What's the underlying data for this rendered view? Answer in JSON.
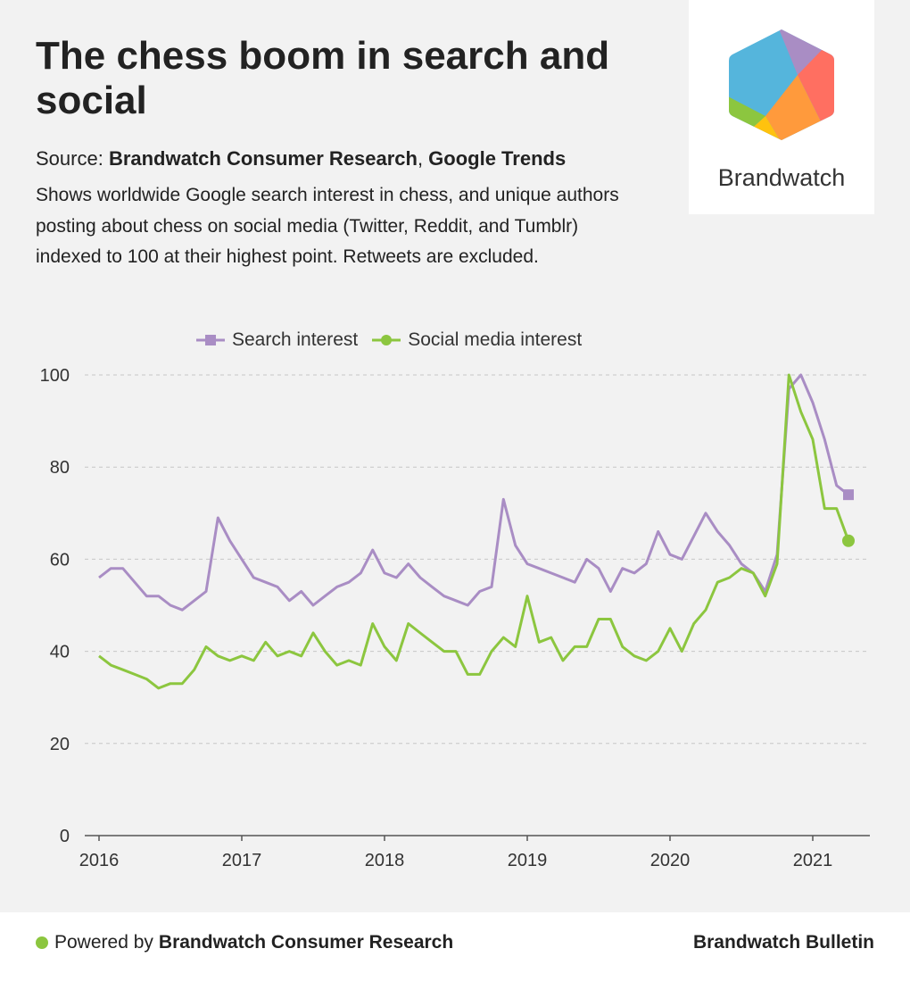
{
  "header": {
    "title": "The chess boom in search and social",
    "source_prefix": "Source: ",
    "source_1": "Brandwatch Consumer Research",
    "source_sep": ", ",
    "source_2": "Google Trends",
    "description": "Shows worldwide Google search interest in chess, and unique authors posting about chess on social media (Twitter, Reddit, and Tumblr) indexed to 100 at their highest point. Retweets are excluded."
  },
  "logo": {
    "word": "Brandwatch",
    "icon": "brandwatch-hexagon-icon"
  },
  "footer": {
    "powered_prefix": "Powered by",
    "powered_name": "Brandwatch Consumer Research",
    "brand": "Brandwatch Bulletin"
  },
  "colors": {
    "search": "#a98dc4",
    "social": "#8cc63f",
    "grid": "#c6c6c6",
    "axis": "#555555"
  },
  "chart_data": {
    "type": "line",
    "title": "The chess boom in search and social",
    "xlabel": "",
    "ylabel": "",
    "ylim": [
      0,
      100
    ],
    "yticks": [
      "0",
      "20",
      "40",
      "60",
      "80",
      "100"
    ],
    "xlim": [
      2016,
      2021.5
    ],
    "xticks": [
      "2016",
      "2017",
      "2018",
      "2019",
      "2020",
      "2021"
    ],
    "grid": true,
    "legend_position": "top",
    "x": [
      2016.0,
      2016.083,
      2016.167,
      2016.25,
      2016.333,
      2016.417,
      2016.5,
      2016.583,
      2016.667,
      2016.75,
      2016.833,
      2016.917,
      2017.0,
      2017.083,
      2017.167,
      2017.25,
      2017.333,
      2017.417,
      2017.5,
      2017.583,
      2017.667,
      2017.75,
      2017.833,
      2017.917,
      2018.0,
      2018.083,
      2018.167,
      2018.25,
      2018.333,
      2018.417,
      2018.5,
      2018.583,
      2018.667,
      2018.75,
      2018.833,
      2018.917,
      2019.0,
      2019.083,
      2019.167,
      2019.25,
      2019.333,
      2019.417,
      2019.5,
      2019.583,
      2019.667,
      2019.75,
      2019.833,
      2019.917,
      2020.0,
      2020.083,
      2020.167,
      2020.25,
      2020.333,
      2020.417,
      2020.5,
      2020.583,
      2020.667,
      2020.75,
      2020.833,
      2020.917,
      2021.0,
      2021.083,
      2021.167,
      2021.25
    ],
    "series": [
      {
        "name": "Search interest",
        "marker": "square",
        "values": [
          56,
          58,
          58,
          55,
          52,
          52,
          50,
          49,
          51,
          53,
          69,
          64,
          60,
          56,
          55,
          54,
          51,
          53,
          50,
          52,
          54,
          55,
          57,
          62,
          57,
          56,
          59,
          56,
          54,
          52,
          51,
          50,
          53,
          54,
          73,
          63,
          59,
          58,
          57,
          56,
          55,
          60,
          58,
          53,
          58,
          57,
          59,
          66,
          61,
          60,
          65,
          70,
          66,
          63,
          59,
          57,
          53,
          61,
          97,
          100,
          94,
          86,
          76,
          74
        ]
      },
      {
        "name": "Social media interest",
        "marker": "circle",
        "values": [
          39,
          37,
          36,
          35,
          34,
          32,
          33,
          33,
          36,
          41,
          39,
          38,
          39,
          38,
          42,
          39,
          40,
          39,
          44,
          40,
          37,
          38,
          37,
          46,
          41,
          38,
          46,
          44,
          42,
          40,
          40,
          35,
          35,
          40,
          43,
          41,
          52,
          42,
          43,
          38,
          41,
          41,
          47,
          47,
          41,
          39,
          38,
          40,
          45,
          40,
          46,
          49,
          55,
          56,
          58,
          57,
          52,
          59,
          100,
          92,
          86,
          71,
          71,
          64
        ]
      }
    ]
  }
}
